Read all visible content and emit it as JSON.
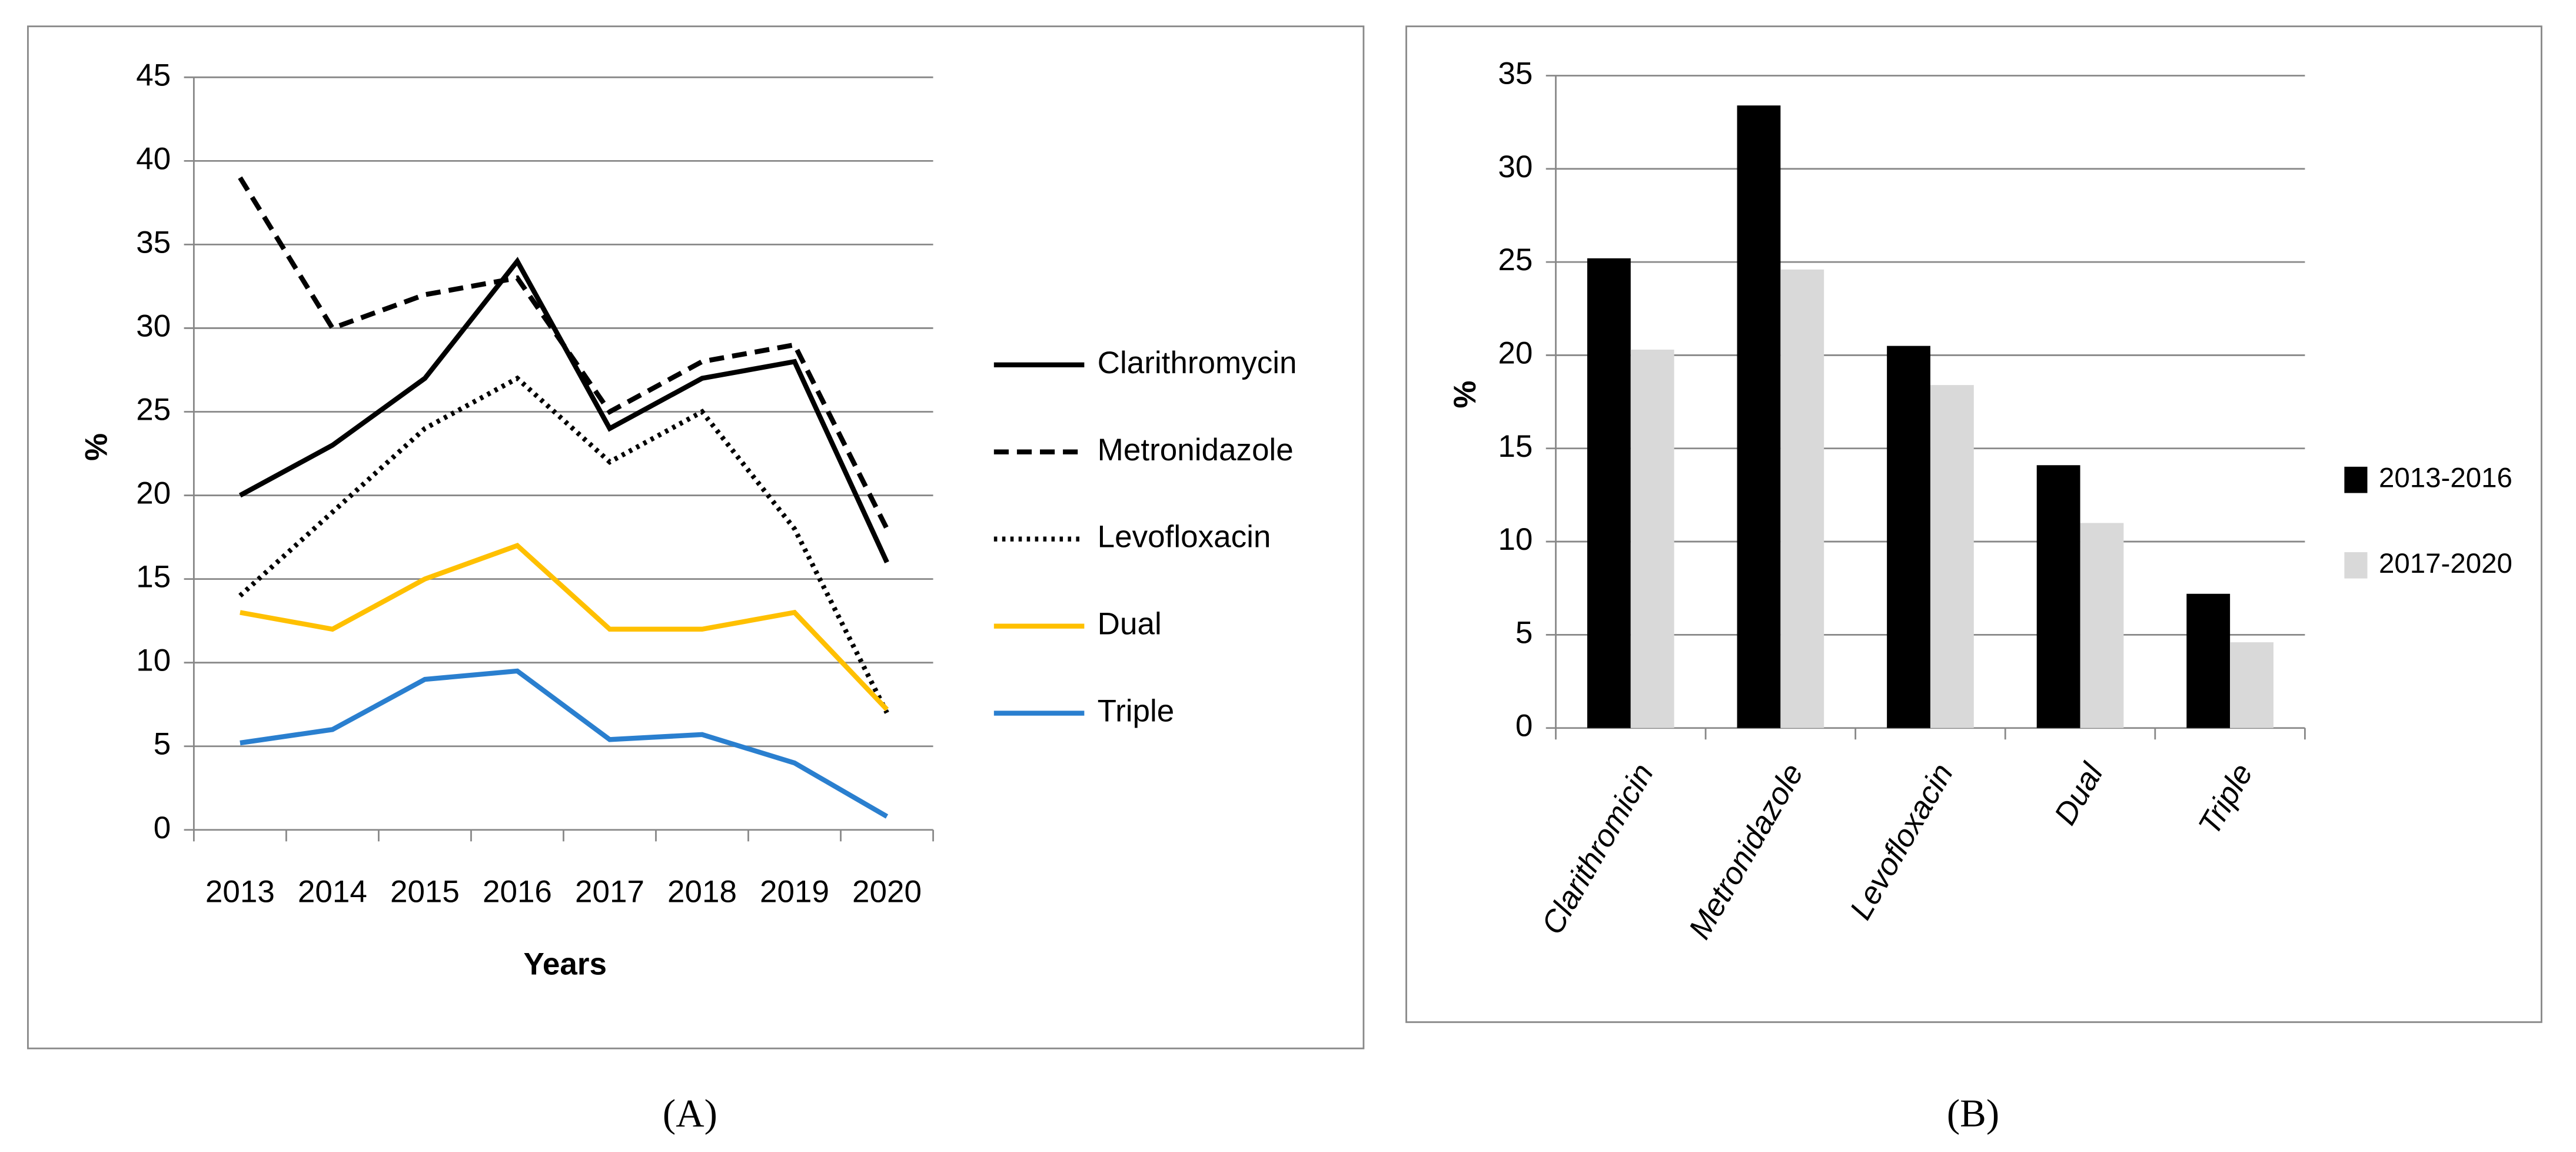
{
  "chart_data": [
    {
      "type": "line",
      "panel_label": "(A)",
      "xlabel": "Years",
      "ylabel": "%",
      "categories": [
        "2013",
        "2014",
        "2015",
        "2016",
        "2017",
        "2018",
        "2019",
        "2020"
      ],
      "ylim": [
        0,
        45
      ],
      "yticks": [
        0,
        5,
        10,
        15,
        20,
        25,
        30,
        35,
        40,
        45
      ],
      "grid": true,
      "legend": "right",
      "series": [
        {
          "name": "Clarithromycin",
          "color": "#000000",
          "dash": "solid",
          "values": [
            20,
            23,
            27,
            34,
            24,
            27,
            28,
            16
          ]
        },
        {
          "name": "Metronidazole",
          "color": "#000000",
          "dash": "dashed",
          "values": [
            39,
            30,
            32,
            33,
            25,
            28,
            29,
            18
          ]
        },
        {
          "name": "Levofloxacin",
          "color": "#000000",
          "dash": "dotted",
          "values": [
            14,
            19,
            24,
            27,
            22,
            25,
            18,
            7
          ]
        },
        {
          "name": "Dual",
          "color": "#ffc000",
          "dash": "solid",
          "values": [
            13,
            12,
            15,
            17,
            12,
            12,
            13,
            7.2
          ]
        },
        {
          "name": "Triple",
          "color": "#2a7fcf",
          "dash": "solid",
          "values": [
            5.2,
            6,
            9,
            9.5,
            5.4,
            5.7,
            4,
            0.8
          ]
        }
      ]
    },
    {
      "type": "bar",
      "panel_label": "(B)",
      "ylabel": "%",
      "categories": [
        "Clarithromicin",
        "Metronidazole",
        "Levofloxacin",
        "Dual",
        "Triple"
      ],
      "ylim": [
        0,
        35
      ],
      "yticks": [
        0,
        5,
        10,
        15,
        20,
        25,
        30,
        35
      ],
      "grid": true,
      "legend": "right",
      "series": [
        {
          "name": "2013-2016",
          "color": "#000000",
          "values": [
            25.2,
            33.4,
            20.5,
            14.1,
            7.2
          ]
        },
        {
          "name": "2017-2020",
          "color": "#d9d9d9",
          "values": [
            20.3,
            24.6,
            18.4,
            11.0,
            4.6
          ]
        }
      ]
    }
  ]
}
